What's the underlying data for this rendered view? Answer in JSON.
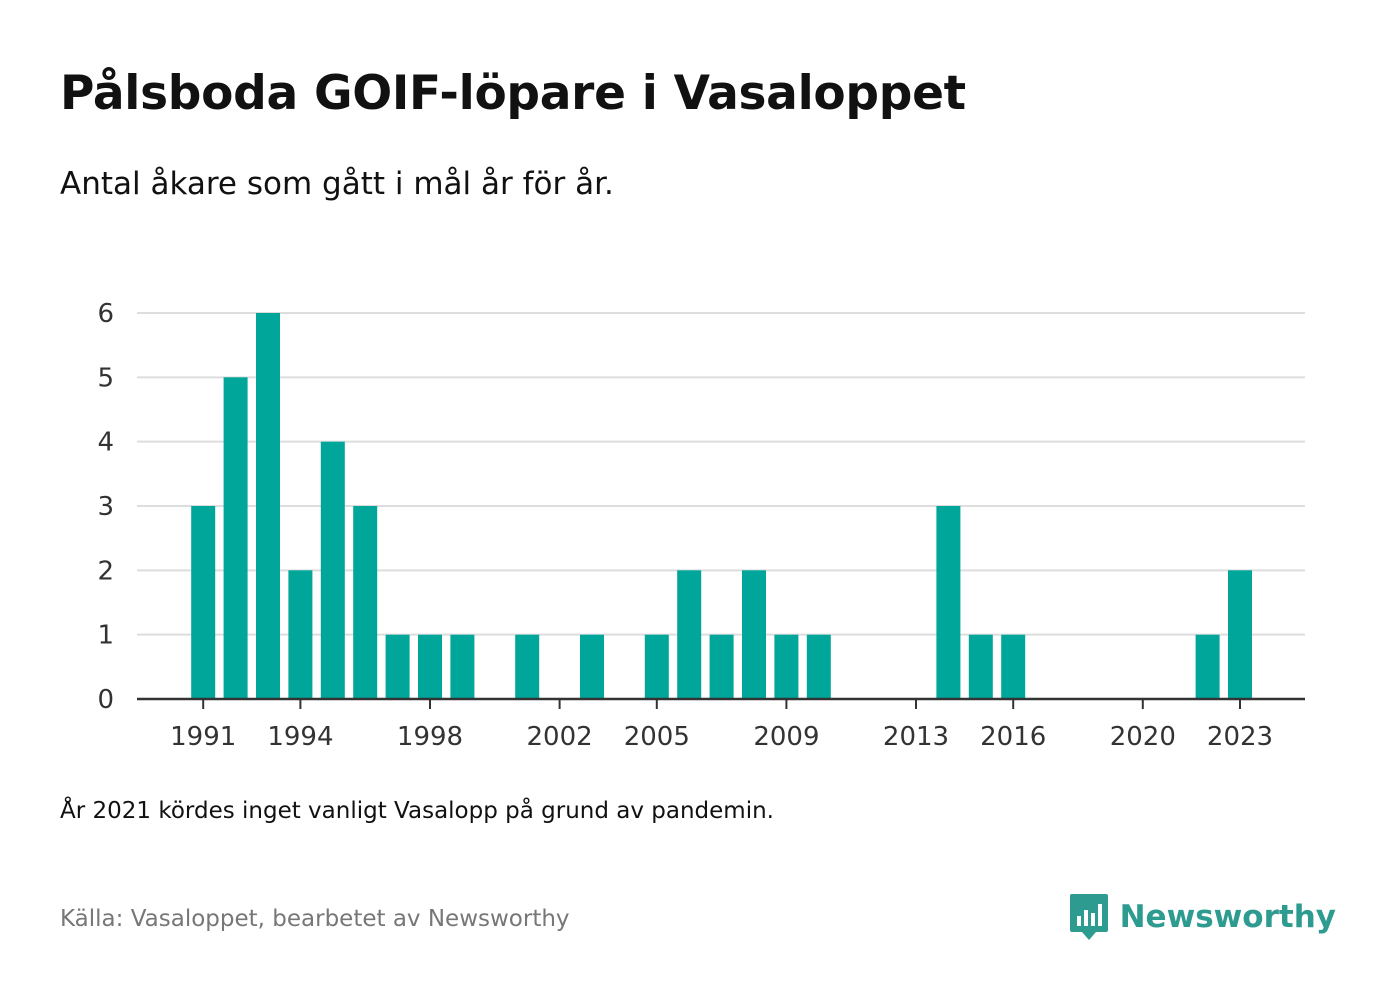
{
  "title": "Pålsboda GOIF-löpare i Vasaloppet",
  "subtitle": "Antal åkare som gått i mål år för år.",
  "note": "År 2021 kördes inget vanligt Vasalopp på grund av pandemin.",
  "source": "Källa: Vasaloppet, bearbetet av Newsworthy",
  "brand": {
    "name": "Newsworthy",
    "icon": "newsworthy-logo-icon",
    "color": "#2e9b90"
  },
  "colors": {
    "bar": "#00a69a",
    "grid": "#dddddd",
    "axis": "#333333"
  },
  "chart_data": {
    "type": "bar",
    "title": "Pålsboda GOIF-löpare i Vasaloppet",
    "subtitle": "Antal åkare som gått i mål år för år.",
    "xlabel": "",
    "ylabel": "",
    "x": [
      1991,
      1992,
      1993,
      1994,
      1995,
      1996,
      1997,
      1998,
      1999,
      2000,
      2001,
      2002,
      2003,
      2004,
      2005,
      2006,
      2007,
      2008,
      2009,
      2010,
      2011,
      2012,
      2013,
      2014,
      2015,
      2016,
      2017,
      2018,
      2019,
      2020,
      2021,
      2022,
      2023
    ],
    "values": [
      3,
      5,
      6,
      2,
      4,
      3,
      1,
      1,
      1,
      0,
      1,
      0,
      1,
      0,
      1,
      2,
      1,
      2,
      1,
      1,
      0,
      0,
      0,
      3,
      1,
      1,
      0,
      0,
      0,
      0,
      0,
      1,
      2
    ],
    "x_tick_labels": [
      "1991",
      "1994",
      "1998",
      "2002",
      "2005",
      "2009",
      "2013",
      "2016",
      "2020",
      "2023"
    ],
    "y_ticks": [
      0,
      1,
      2,
      3,
      4,
      5,
      6
    ],
    "ylim": [
      0,
      6
    ],
    "grid": true,
    "legend": "none"
  }
}
